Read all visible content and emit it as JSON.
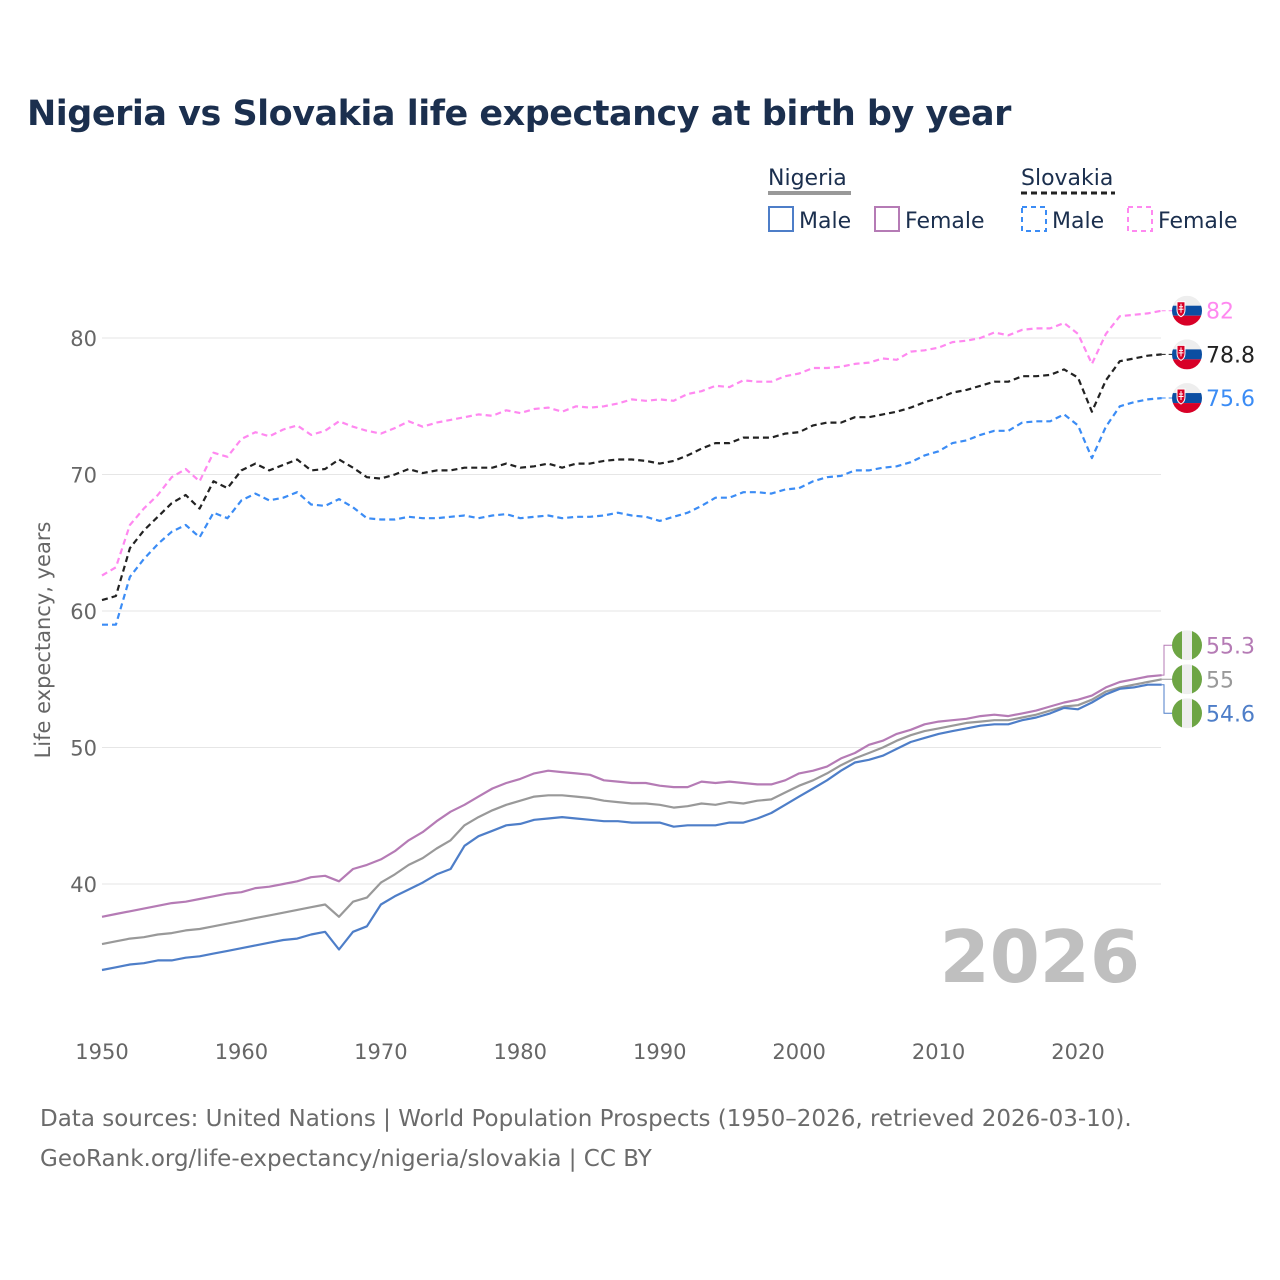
{
  "title": "Nigeria vs Slovakia life expectancy at birth by year",
  "legend": {
    "groups": [
      {
        "country": "Nigeria",
        "style": "solid",
        "color": "#999999",
        "items": [
          {
            "label": "Male",
            "color": "#4e7ec8"
          },
          {
            "label": "Female",
            "color": "#b57bb5"
          }
        ]
      },
      {
        "country": "Slovakia",
        "style": "dashed",
        "color": "#222222",
        "items": [
          {
            "label": "Male",
            "color": "#3b8cf5"
          },
          {
            "label": "Female",
            "color": "#ff88f0"
          }
        ]
      }
    ]
  },
  "year_watermark": "2026",
  "footer": {
    "line1": "Data sources: United Nations | World Population Prospects (1950–2026, retrieved 2026-03-10).",
    "line2": "GeoRank.org/life-expectancy/nigeria/slovakia | CC BY"
  },
  "chart_data": {
    "type": "line",
    "title": "Nigeria vs Slovakia life expectancy at birth by year",
    "xlabel": "",
    "ylabel": "Life expectancy, years",
    "xlim": [
      1950,
      2026
    ],
    "ylim": [
      30,
      85
    ],
    "xticks": [
      1950,
      1960,
      1970,
      1980,
      1990,
      2000,
      2010,
      2020
    ],
    "yticks": [
      40,
      50,
      60,
      70,
      80
    ],
    "grid": true,
    "legend_position": "top-right",
    "x_start": 1950,
    "series": [
      {
        "name": "Slovakia Female",
        "country": "Slovakia",
        "flag": "slovakia",
        "dashed": true,
        "color": "#ff88f0",
        "end_label": "82",
        "values": [
          62.6,
          63.2,
          66.3,
          67.5,
          68.5,
          69.8,
          70.4,
          69.5,
          71.6,
          71.3,
          72.6,
          73.1,
          72.8,
          73.3,
          73.6,
          72.9,
          73.2,
          73.9,
          73.5,
          73.2,
          73.0,
          73.4,
          73.9,
          73.5,
          73.8,
          74.0,
          74.2,
          74.4,
          74.3,
          74.7,
          74.5,
          74.8,
          74.9,
          74.6,
          75.0,
          74.9,
          75.0,
          75.2,
          75.5,
          75.4,
          75.5,
          75.4,
          75.9,
          76.1,
          76.5,
          76.4,
          76.9,
          76.8,
          76.8,
          77.2,
          77.4,
          77.8,
          77.8,
          77.9,
          78.1,
          78.2,
          78.5,
          78.4,
          79.0,
          79.1,
          79.3,
          79.7,
          79.8,
          80.0,
          80.4,
          80.2,
          80.6,
          80.7,
          80.7,
          81.1,
          80.3,
          78.1,
          80.3,
          81.6,
          81.7,
          81.8,
          82.0
        ]
      },
      {
        "name": "Slovakia",
        "country": "Slovakia",
        "flag": "slovakia",
        "dashed": true,
        "color": "#222222",
        "end_label": "78.8",
        "values": [
          60.8,
          61.1,
          64.6,
          65.9,
          66.9,
          67.9,
          68.5,
          67.5,
          69.5,
          69.0,
          70.3,
          70.8,
          70.3,
          70.7,
          71.1,
          70.3,
          70.4,
          71.1,
          70.5,
          69.8,
          69.7,
          70.0,
          70.4,
          70.1,
          70.3,
          70.3,
          70.5,
          70.5,
          70.5,
          70.8,
          70.5,
          70.6,
          70.8,
          70.5,
          70.8,
          70.8,
          71.0,
          71.1,
          71.1,
          71.0,
          70.8,
          71.0,
          71.4,
          71.9,
          72.3,
          72.3,
          72.7,
          72.7,
          72.7,
          73.0,
          73.1,
          73.6,
          73.8,
          73.8,
          74.2,
          74.2,
          74.4,
          74.6,
          74.9,
          75.3,
          75.6,
          76.0,
          76.2,
          76.5,
          76.8,
          76.8,
          77.2,
          77.2,
          77.3,
          77.7,
          77.1,
          74.6,
          76.9,
          78.3,
          78.5,
          78.7,
          78.8
        ]
      },
      {
        "name": "Slovakia Male",
        "country": "Slovakia",
        "flag": "slovakia",
        "dashed": true,
        "color": "#3b8cf5",
        "end_label": "75.6",
        "values": [
          59.0,
          59.0,
          62.5,
          63.8,
          64.9,
          65.8,
          66.3,
          65.4,
          67.2,
          66.8,
          68.1,
          68.6,
          68.1,
          68.3,
          68.7,
          67.8,
          67.7,
          68.2,
          67.6,
          66.8,
          66.7,
          66.7,
          66.9,
          66.8,
          66.8,
          66.9,
          67.0,
          66.8,
          67.0,
          67.1,
          66.8,
          66.9,
          67.0,
          66.8,
          66.9,
          66.9,
          67.0,
          67.2,
          67.0,
          66.9,
          66.6,
          66.9,
          67.2,
          67.7,
          68.3,
          68.3,
          68.7,
          68.7,
          68.6,
          68.9,
          69.0,
          69.5,
          69.8,
          69.9,
          70.3,
          70.3,
          70.5,
          70.6,
          70.9,
          71.4,
          71.7,
          72.3,
          72.5,
          72.9,
          73.2,
          73.2,
          73.8,
          73.9,
          73.9,
          74.4,
          73.6,
          71.2,
          73.5,
          75.0,
          75.3,
          75.5,
          75.6
        ]
      },
      {
        "name": "Nigeria Female",
        "country": "Nigeria",
        "flag": "nigeria",
        "dashed": false,
        "color": "#b57bb5",
        "end_label": "55.3",
        "values": [
          37.6,
          37.8,
          38.0,
          38.2,
          38.4,
          38.6,
          38.7,
          38.9,
          39.1,
          39.3,
          39.4,
          39.7,
          39.8,
          40.0,
          40.2,
          40.5,
          40.6,
          40.2,
          41.1,
          41.4,
          41.8,
          42.4,
          43.2,
          43.8,
          44.6,
          45.3,
          45.8,
          46.4,
          47.0,
          47.4,
          47.7,
          48.1,
          48.3,
          48.2,
          48.1,
          48.0,
          47.6,
          47.5,
          47.4,
          47.4,
          47.2,
          47.1,
          47.1,
          47.5,
          47.4,
          47.5,
          47.4,
          47.3,
          47.3,
          47.6,
          48.1,
          48.3,
          48.6,
          49.2,
          49.6,
          50.2,
          50.5,
          51.0,
          51.3,
          51.7,
          51.9,
          52.0,
          52.1,
          52.3,
          52.4,
          52.3,
          52.5,
          52.7,
          53.0,
          53.3,
          53.5,
          53.8,
          54.4,
          54.8,
          55.0,
          55.2,
          55.3
        ]
      },
      {
        "name": "Nigeria",
        "country": "Nigeria",
        "flag": "nigeria",
        "dashed": false,
        "color": "#999999",
        "end_label": "55",
        "values": [
          35.6,
          35.8,
          36.0,
          36.1,
          36.3,
          36.4,
          36.6,
          36.7,
          36.9,
          37.1,
          37.3,
          37.5,
          37.7,
          37.9,
          38.1,
          38.3,
          38.5,
          37.6,
          38.7,
          39.0,
          40.1,
          40.7,
          41.4,
          41.9,
          42.6,
          43.2,
          44.3,
          44.9,
          45.4,
          45.8,
          46.1,
          46.4,
          46.5,
          46.5,
          46.4,
          46.3,
          46.1,
          46.0,
          45.9,
          45.9,
          45.8,
          45.6,
          45.7,
          45.9,
          45.8,
          46.0,
          45.9,
          46.1,
          46.2,
          46.7,
          47.2,
          47.6,
          48.1,
          48.7,
          49.2,
          49.6,
          50.0,
          50.5,
          50.9,
          51.2,
          51.4,
          51.6,
          51.8,
          51.9,
          52.0,
          52.0,
          52.2,
          52.4,
          52.7,
          53.0,
          53.1,
          53.5,
          54.1,
          54.4,
          54.6,
          54.8,
          55.0
        ]
      },
      {
        "name": "Nigeria Male",
        "country": "Nigeria",
        "flag": "nigeria",
        "dashed": false,
        "color": "#4e7ec8",
        "end_label": "54.6",
        "values": [
          33.7,
          33.9,
          34.1,
          34.2,
          34.4,
          34.4,
          34.6,
          34.7,
          34.9,
          35.1,
          35.3,
          35.5,
          35.7,
          35.9,
          36.0,
          36.3,
          36.5,
          35.2,
          36.5,
          36.9,
          38.5,
          39.1,
          39.6,
          40.1,
          40.7,
          41.1,
          42.8,
          43.5,
          43.9,
          44.3,
          44.4,
          44.7,
          44.8,
          44.9,
          44.8,
          44.7,
          44.6,
          44.6,
          44.5,
          44.5,
          44.5,
          44.2,
          44.3,
          44.3,
          44.3,
          44.5,
          44.5,
          44.8,
          45.2,
          45.8,
          46.4,
          47.0,
          47.6,
          48.3,
          48.9,
          49.1,
          49.4,
          49.9,
          50.4,
          50.7,
          51.0,
          51.2,
          51.4,
          51.6,
          51.7,
          51.7,
          52.0,
          52.2,
          52.5,
          52.9,
          52.8,
          53.3,
          53.9,
          54.3,
          54.4,
          54.6,
          54.6
        ]
      }
    ]
  }
}
